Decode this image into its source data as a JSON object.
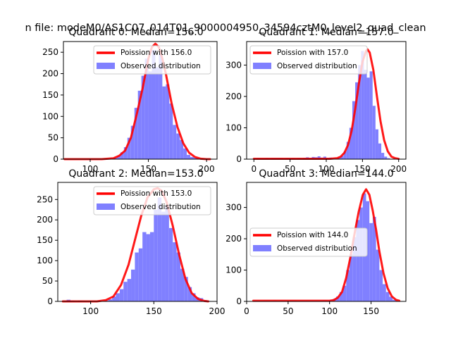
{
  "figure": {
    "suptitle": "n file: modeM0/AS1C07_014T01_9000004950_34594cztM0_level2_quad_clean"
  },
  "colors": {
    "hist": "#8080ff",
    "poisson": "#ff0000",
    "axes": "#000000",
    "background": "#ffffff"
  },
  "chart_data": [
    {
      "type": "bar+line",
      "title": "Quadrant 0: Median=156.0",
      "median": 156.0,
      "xlim": [
        77,
        209
      ],
      "ylim": [
        0,
        275
      ],
      "xticks": [
        100,
        150,
        200
      ],
      "yticks": [
        0,
        50,
        100,
        150,
        200,
        250
      ],
      "legend": {
        "location": "upper right",
        "line_label": "Poission with 156.0",
        "hist_label": "Observed distribution"
      },
      "histogram": {
        "bin_width": 3,
        "x": [
          78,
          81,
          84,
          87,
          90,
          93,
          96,
          99,
          102,
          105,
          108,
          111,
          114,
          117,
          120,
          123,
          126,
          129,
          132,
          135,
          138,
          141,
          144,
          147,
          150,
          153,
          156,
          159,
          162,
          165,
          168,
          171,
          174,
          177,
          180,
          183,
          186,
          189,
          192,
          195,
          198,
          201
        ],
        "counts": [
          0,
          0,
          0,
          0,
          0,
          0,
          0,
          0,
          0,
          0,
          0,
          0,
          0,
          2,
          4,
          8,
          16,
          28,
          50,
          78,
          120,
          160,
          195,
          235,
          205,
          255,
          215,
          245,
          170,
          175,
          130,
          80,
          60,
          45,
          25,
          10,
          5,
          3,
          1,
          0,
          0,
          0
        ]
      },
      "poisson_curve": {
        "x": [
          78,
          110,
          120,
          125,
          130,
          135,
          140,
          145,
          150,
          153,
          156,
          159,
          162,
          165,
          170,
          175,
          180,
          185,
          190,
          195,
          200,
          203
        ],
        "y": [
          0,
          0,
          2,
          8,
          20,
          50,
          105,
          165,
          235,
          262,
          270,
          262,
          235,
          200,
          130,
          75,
          37,
          15,
          5,
          1,
          0,
          0
        ]
      }
    },
    {
      "type": "bar+line",
      "title": "Quadrant 1: Median=157.0",
      "median": 157.0,
      "xlim": [
        -10,
        210
      ],
      "ylim": [
        0,
        375
      ],
      "xticks": [
        0,
        50,
        100,
        150,
        200
      ],
      "yticks": [
        0,
        100,
        200,
        300
      ],
      "legend": {
        "location": "upper left",
        "line_label": "Poission with 157.0",
        "hist_label": "Observed distribution"
      },
      "histogram": {
        "bin_width": 4,
        "x": [
          0,
          4,
          8,
          12,
          16,
          20,
          24,
          28,
          32,
          36,
          40,
          44,
          48,
          52,
          56,
          60,
          64,
          68,
          72,
          76,
          80,
          84,
          88,
          92,
          96,
          100,
          104,
          108,
          112,
          116,
          120,
          124,
          128,
          132,
          136,
          140,
          144,
          148,
          152,
          156,
          160,
          164,
          168,
          172,
          176,
          180,
          184,
          188,
          192,
          196
        ],
        "counts": [
          2,
          3,
          2,
          2,
          3,
          2,
          3,
          3,
          3,
          3,
          2,
          3,
          2,
          3,
          2,
          3,
          2,
          4,
          6,
          3,
          7,
          6,
          9,
          5,
          8,
          4,
          5,
          3,
          2,
          6,
          10,
          25,
          55,
          100,
          185,
          245,
          300,
          345,
          285,
          260,
          280,
          170,
          95,
          50,
          20,
          8,
          3,
          1,
          0,
          0
        ]
      },
      "poisson_curve": {
        "x": [
          0,
          105,
          115,
          120,
          125,
          130,
          135,
          140,
          145,
          150,
          155,
          157,
          160,
          165,
          170,
          175,
          180,
          185,
          190,
          195,
          200
        ],
        "y": [
          1,
          1,
          3,
          8,
          20,
          45,
          90,
          160,
          240,
          310,
          345,
          350,
          340,
          285,
          200,
          120,
          60,
          25,
          8,
          3,
          1
        ]
      }
    },
    {
      "type": "bar+line",
      "title": "Quadrant 2: Median=153.0",
      "median": 153.0,
      "xlim": [
        74,
        200
      ],
      "ylim": [
        0,
        292
      ],
      "xticks": [
        100,
        150,
        200
      ],
      "yticks": [
        0,
        50,
        100,
        150,
        200,
        250
      ],
      "legend": {
        "location": "upper right",
        "line_label": "Poission with 153.0",
        "hist_label": "Observed distribution"
      },
      "histogram": {
        "bin_width": 3,
        "x": [
          78,
          81,
          84,
          87,
          90,
          93,
          96,
          99,
          102,
          105,
          108,
          111,
          114,
          117,
          120,
          123,
          126,
          129,
          132,
          135,
          138,
          141,
          144,
          147,
          150,
          153,
          156,
          159,
          162,
          165,
          168,
          171,
          174,
          177,
          180,
          183,
          186,
          189,
          192
        ],
        "counts": [
          1,
          4,
          2,
          1,
          2,
          1,
          0,
          0,
          0,
          0,
          0,
          2,
          5,
          12,
          20,
          30,
          48,
          55,
          78,
          120,
          130,
          170,
          165,
          170,
          225,
          255,
          220,
          235,
          180,
          145,
          120,
          80,
          60,
          35,
          20,
          10,
          8,
          3,
          1
        ]
      },
      "poisson_curve": {
        "x": [
          78,
          105,
          112,
          118,
          124,
          130,
          135,
          140,
          145,
          150,
          153,
          156,
          160,
          165,
          170,
          175,
          180,
          185,
          190,
          193
        ],
        "y": [
          0,
          0,
          3,
          12,
          40,
          90,
          150,
          210,
          255,
          275,
          278,
          272,
          245,
          185,
          115,
          55,
          20,
          6,
          1,
          0
        ]
      }
    },
    {
      "type": "bar+line",
      "title": "Quadrant 3: Median=144.0",
      "median": 144.0,
      "xlim": [
        0,
        192
      ],
      "ylim": [
        0,
        380
      ],
      "xticks": [
        0,
        50,
        100,
        150
      ],
      "yticks": [
        0,
        100,
        200,
        300
      ],
      "legend": {
        "location": "center left",
        "line_label": "Poission with 144.0",
        "hist_label": "Observed distribution"
      },
      "histogram": {
        "bin_width": 4,
        "x": [
          8,
          12,
          16,
          20,
          24,
          28,
          32,
          36,
          40,
          44,
          48,
          52,
          56,
          60,
          64,
          68,
          72,
          76,
          80,
          84,
          88,
          92,
          96,
          100,
          104,
          108,
          112,
          116,
          120,
          124,
          128,
          132,
          136,
          140,
          144,
          148,
          152,
          156,
          160,
          164,
          168,
          172,
          176,
          180
        ],
        "counts": [
          3,
          3,
          2,
          3,
          3,
          2,
          3,
          2,
          3,
          3,
          2,
          3,
          3,
          2,
          3,
          3,
          3,
          3,
          3,
          3,
          3,
          4,
          3,
          4,
          8,
          16,
          30,
          50,
          100,
          150,
          205,
          260,
          300,
          345,
          320,
          250,
          270,
          165,
          100,
          55,
          30,
          15,
          5,
          2
        ]
      },
      "poisson_curve": {
        "x": [
          8,
          100,
          105,
          110,
          115,
          120,
          125,
          130,
          135,
          140,
          144,
          148,
          152,
          156,
          160,
          165,
          170,
          175,
          180,
          184
        ],
        "y": [
          2,
          2,
          4,
          12,
          30,
          75,
          140,
          215,
          285,
          340,
          358,
          340,
          290,
          230,
          160,
          90,
          42,
          16,
          5,
          2
        ]
      }
    }
  ]
}
